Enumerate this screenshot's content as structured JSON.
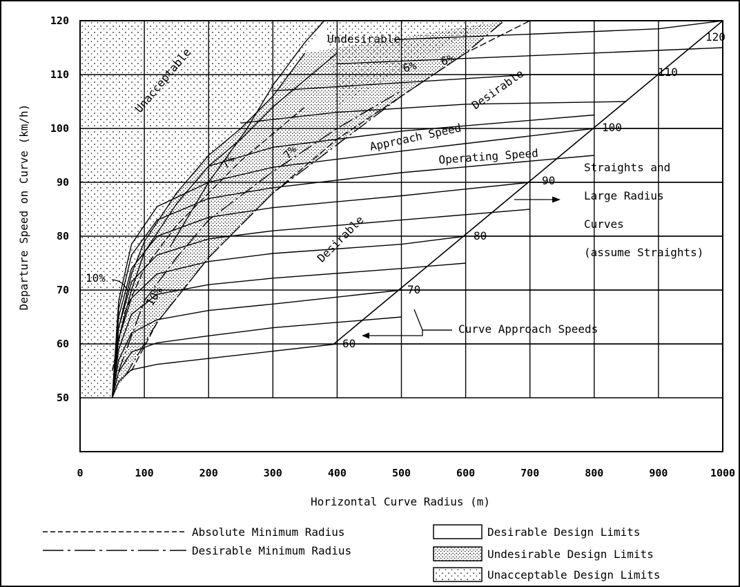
{
  "chart_data": {
    "type": "line",
    "title": "",
    "xlabel": "Horizontal Curve Radius (m)",
    "ylabel": "Departure Speed on Curve (km/h)",
    "xlim": [
      0,
      1000
    ],
    "ylim": [
      40,
      120
    ],
    "x_ticks": [
      "0",
      "100",
      "200",
      "300",
      "400",
      "500",
      "600",
      "700",
      "800",
      "900",
      "1000"
    ],
    "y_ticks": [
      "50",
      "60",
      "70",
      "80",
      "90",
      "100",
      "110",
      "120"
    ],
    "grid": true,
    "approach_speed_lines": [
      {
        "name": "60",
        "x": [
          395,
          420,
          600,
          720,
          900,
          1000
        ],
        "y": [
          60,
          60,
          60,
          60,
          60,
          60
        ]
      },
      {
        "name": "70",
        "x": [
          500,
          560,
          700,
          900,
          1000
        ],
        "y": [
          70,
          70,
          70,
          70,
          70
        ]
      },
      {
        "name": "80",
        "x": [
          600,
          660,
          700,
          900,
          1000
        ],
        "y": [
          80,
          80,
          80,
          80,
          80
        ]
      },
      {
        "name": "90",
        "x": [
          700,
          900,
          1000
        ],
        "y": [
          90,
          90,
          90
        ]
      },
      {
        "name": "100",
        "x": [
          800,
          870,
          900,
          1000
        ],
        "y": [
          100,
          100,
          100,
          100
        ]
      },
      {
        "name": "110",
        "x": [
          900,
          915,
          1000
        ],
        "y": [
          110,
          110,
          110
        ]
      },
      {
        "name": "120",
        "x": [
          1000
        ],
        "y": [
          120
        ]
      }
    ],
    "operating_curves": [
      {
        "x": [
          50,
          60,
          80,
          120,
          200,
          400
        ],
        "y": [
          50,
          53,
          55.2,
          56.2,
          57.3,
          60
        ]
      },
      {
        "x": [
          50,
          60,
          80,
          120,
          200,
          300,
          500
        ],
        "y": [
          50,
          54.8,
          58.5,
          60.2,
          61.5,
          63,
          65
        ]
      },
      {
        "x": [
          50,
          60,
          80,
          120,
          200,
          300,
          500
        ],
        "y": [
          50,
          57,
          62,
          64.5,
          66.2,
          67.4,
          70
        ]
      },
      {
        "x": [
          50,
          60,
          80,
          120,
          200,
          300,
          500,
          600
        ],
        "y": [
          50,
          59,
          65.5,
          69.2,
          71,
          72.2,
          74,
          75
        ]
      },
      {
        "x": [
          50,
          60,
          80,
          120,
          200,
          300,
          500,
          600
        ],
        "y": [
          50,
          61,
          68.5,
          73,
          75.3,
          76.8,
          78.5,
          80
        ]
      },
      {
        "x": [
          50,
          60,
          80,
          120,
          200,
          300,
          500,
          700
        ],
        "y": [
          50,
          63,
          71.5,
          76.5,
          79.5,
          81,
          83,
          85
        ]
      },
      {
        "x": [
          50,
          60,
          80,
          120,
          200,
          300,
          500,
          700
        ],
        "y": [
          50,
          65,
          74,
          80,
          83.5,
          85.3,
          87.5,
          90
        ]
      },
      {
        "x": [
          50,
          60,
          80,
          120,
          200,
          300,
          500,
          800
        ],
        "y": [
          50,
          66.5,
          76.5,
          83,
          87,
          89,
          91.8,
          95
        ]
      },
      {
        "x": [
          50,
          60,
          80,
          120,
          200,
          300,
          500,
          800
        ],
        "y": [
          50,
          68,
          78.5,
          85.5,
          90,
          92.8,
          95.8,
          100
        ]
      },
      {
        "x": [
          200,
          300,
          500,
          800
        ],
        "y": [
          93,
          96.5,
          99.5,
          102.5
        ]
      },
      {
        "x": [
          250,
          400,
          600,
          850
        ],
        "y": [
          101,
          103,
          104.5,
          105
        ]
      },
      {
        "x": [
          300,
          500,
          700,
          900
        ],
        "y": [
          107,
          108.5,
          110,
          110
        ]
      },
      {
        "x": [
          400,
          600,
          800,
          1000
        ],
        "y": [
          112,
          113,
          114,
          115
        ]
      },
      {
        "x": [
          490,
          700,
          900,
          1000
        ],
        "y": [
          116.5,
          117.5,
          118.5,
          120
        ]
      }
    ],
    "limit_curves": [
      {
        "name": "10%",
        "x": [
          50,
          60,
          80,
          100,
          150,
          200,
          250,
          300,
          350
        ],
        "y": [
          50,
          63,
          73,
          79,
          88,
          95,
          100,
          106,
          114
        ]
      },
      {
        "name": "10%",
        "x": [
          50,
          60,
          80,
          100,
          150,
          200,
          250,
          300,
          400
        ],
        "y": [
          50,
          61,
          70,
          77,
          86,
          93,
          98,
          104,
          114
        ]
      },
      {
        "name": "7%",
        "x": [
          50,
          70,
          100,
          150,
          200,
          250,
          300,
          350
        ],
        "y": [
          55,
          66,
          74,
          82,
          88,
          94,
          99,
          104
        ]
      },
      {
        "name": "7%",
        "x": [
          60,
          100,
          150,
          200,
          300,
          400,
          500
        ],
        "y": [
          55,
          68,
          76,
          83,
          92,
          100,
          107
        ]
      },
      {
        "name": "6%",
        "x": [
          80,
          120,
          200,
          300,
          400,
          500,
          600,
          700
        ],
        "y": [
          55,
          64,
          76,
          88,
          98,
          106,
          114,
          120
        ]
      },
      {
        "name": "6%",
        "x": [
          70,
          120,
          200,
          300,
          400,
          500,
          600,
          660
        ],
        "y": [
          54,
          64,
          76,
          88,
          97,
          106,
          114,
          120
        ]
      },
      {
        "name": "Undesirable",
        "x": [
          140,
          200,
          260,
          300,
          350,
          380
        ],
        "y": [
          78,
          90,
          100,
          108,
          116,
          120
        ]
      }
    ],
    "annotations": [
      "Unacceptable",
      "Undesirable",
      "6%",
      "6%",
      "Desirable",
      "Approach Speed",
      "Operating Speed",
      "7%",
      "7%",
      "Desirable",
      "10%",
      "10%",
      "Straights and",
      "Large Radius",
      "Curves",
      "(assume Straights)",
      "Curve Approach Speeds",
      "60",
      "70",
      "80",
      "90",
      "100",
      "110",
      "120"
    ],
    "legend": [
      {
        "label": "Absolute Minimum Radius",
        "style": "dashed"
      },
      {
        "label": "Desirable Minimum Radius",
        "style": "dash-dot"
      },
      {
        "label": "Desirable Design Limits",
        "fill": "none"
      },
      {
        "label": "Undesirable Design Limits",
        "fill": "dense-dots"
      },
      {
        "label": "Unacceptable Design Limits",
        "fill": "sparse-dots"
      }
    ],
    "legend_position": "bottom"
  }
}
